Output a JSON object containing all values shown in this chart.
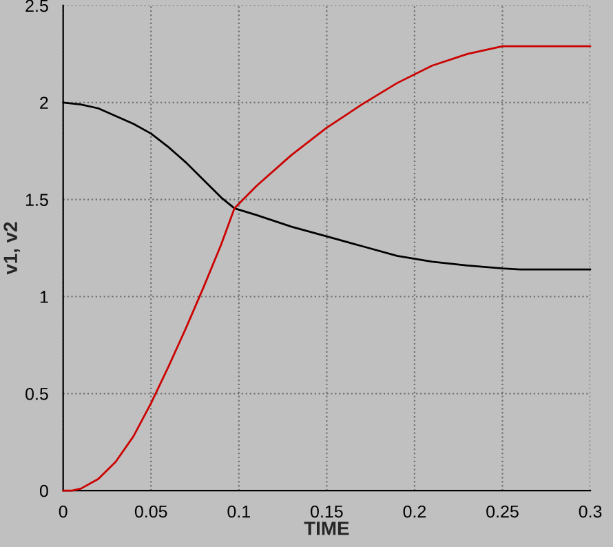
{
  "chart_data": {
    "type": "line",
    "xlabel": "TIME",
    "ylabel": "v1, v2",
    "xlim": [
      0,
      0.3
    ],
    "xticks": [
      0,
      0.05,
      0.1,
      0.15,
      0.2,
      0.25,
      0.3
    ],
    "ylim": [
      0,
      2.5
    ],
    "yticks": [
      0,
      0.5,
      1,
      1.5,
      2,
      2.5
    ],
    "grid": true,
    "legend": false,
    "marker": "none",
    "line_style": "solid",
    "series": [
      {
        "color": "#000000",
        "x": [
          0,
          0.01,
          0.02,
          0.03,
          0.04,
          0.05,
          0.06,
          0.07,
          0.08,
          0.09,
          0.0975,
          0.11,
          0.13,
          0.15,
          0.17,
          0.19,
          0.21,
          0.23,
          0.25,
          0.26,
          0.3
        ],
        "values": [
          2.0,
          1.99,
          1.97,
          1.93,
          1.89,
          1.84,
          1.77,
          1.69,
          1.6,
          1.51,
          1.455,
          1.42,
          1.36,
          1.31,
          1.26,
          1.21,
          1.18,
          1.16,
          1.145,
          1.14,
          1.14
        ]
      },
      {
        "color": "#cc0000",
        "x": [
          0,
          0.005,
          0.01,
          0.02,
          0.03,
          0.04,
          0.05,
          0.06,
          0.07,
          0.08,
          0.09,
          0.0975,
          0.11,
          0.13,
          0.15,
          0.17,
          0.19,
          0.21,
          0.23,
          0.25,
          0.3
        ],
        "values": [
          0,
          0,
          0.01,
          0.06,
          0.15,
          0.28,
          0.45,
          0.64,
          0.84,
          1.05,
          1.27,
          1.455,
          1.57,
          1.73,
          1.87,
          1.99,
          2.1,
          2.19,
          2.25,
          2.29,
          2.29
        ]
      }
    ]
  }
}
